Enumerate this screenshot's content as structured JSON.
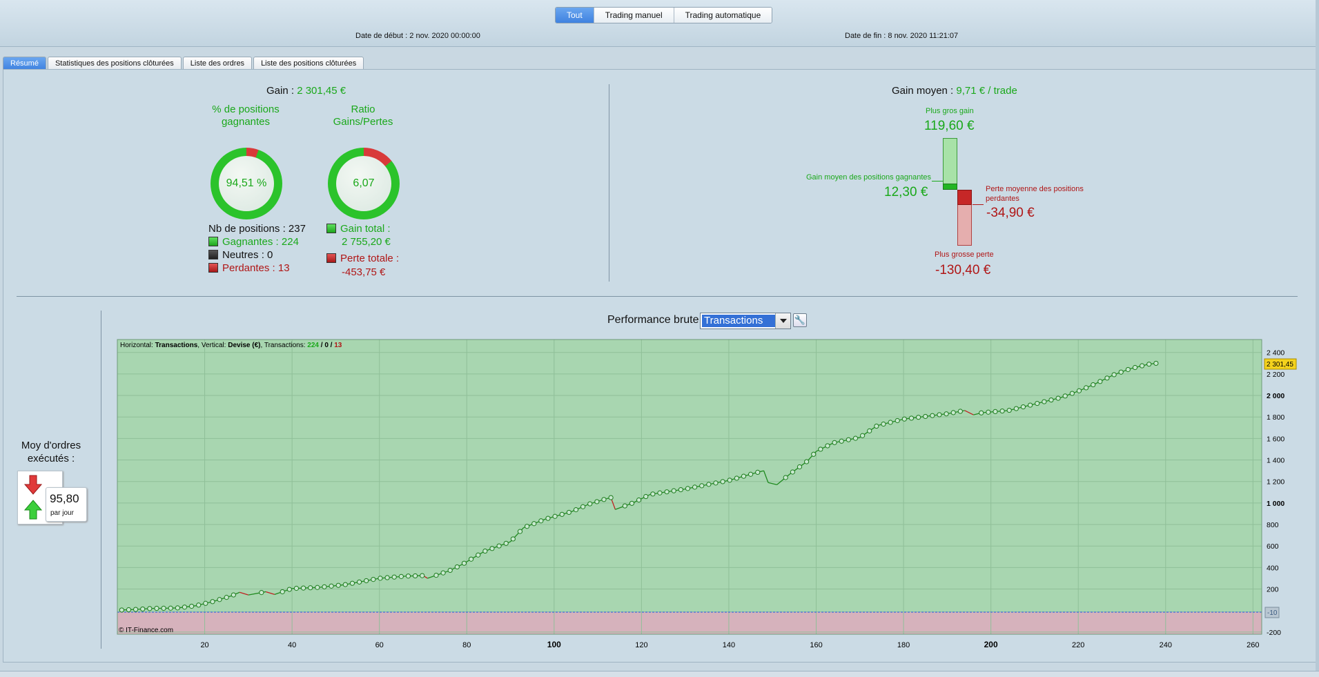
{
  "header": {
    "filters": [
      "Tout",
      "Trading manuel",
      "Trading automatique"
    ],
    "active_filter": "Tout",
    "start_date_label": "Date de début :",
    "start_date": "2 nov. 2020 00:00:00",
    "end_date_label": "Date de fin :",
    "end_date": "8 nov. 2020 11:21:07"
  },
  "tabs": [
    "Résumé",
    "Statistiques des positions clôturées",
    "Liste des ordres",
    "Liste des positions clôturées"
  ],
  "summary": {
    "gain_label": "Gain :",
    "gain_value": "2 301,45 €",
    "pct_title": "% de positions gagnantes",
    "pct_value": "94,51 %",
    "pct_fraction": 0.9451,
    "ratio_title": "Ratio Gains/Pertes",
    "ratio_value": "6,07",
    "ratio_fraction": 0.8585,
    "nb_positions": "Nb de positions : 237",
    "winning": "Gagnantes : 224",
    "neutral": "Neutres : 0",
    "losing": "Perdantes : 13",
    "total_gain_label": "Gain total :",
    "total_gain_value": "2 755,20 €",
    "total_loss_label": "Perte totale :",
    "total_loss_value": "-453,75 €"
  },
  "average": {
    "title_label": "Gain moyen :",
    "title_value": "9,71 € / trade",
    "biggest_gain_label": "Plus gros gain",
    "biggest_gain_value": "119,60 €",
    "avg_win_label": "Gain moyen des positions gagnantes",
    "avg_win_value": "12,30 €",
    "avg_loss_label": "Perte moyenne des positions perdantes",
    "avg_loss_value": "-34,90 €",
    "biggest_loss_label": "Plus grosse perte",
    "biggest_loss_value": "-130,40 €"
  },
  "orders": {
    "title": "Moy d'ordres exécutés :",
    "value": "95,80",
    "unit": "par jour"
  },
  "performance": {
    "title": "Performance brute",
    "dropdown_value": "Transactions"
  },
  "chart_data": {
    "type": "line",
    "info_prefix": "Horizontal:",
    "info_h": "Transactions",
    "info_mid": ", Vertical:",
    "info_v": "Devise (€)",
    "info_tr": ", Transactions:",
    "info_win": "224",
    "info_sep1": "/",
    "info_neutral": "0",
    "info_sep2": "/",
    "info_loss": "13",
    "copyright": "© IT-Finance.com",
    "xlim": [
      0,
      262
    ],
    "ylim": [
      -220,
      2520
    ],
    "x_ticks": [
      "20",
      "40",
      "60",
      "80",
      "100",
      "120",
      "140",
      "160",
      "180",
      "200",
      "220",
      "240",
      "260"
    ],
    "x_tick_values": [
      20,
      40,
      60,
      80,
      100,
      120,
      140,
      160,
      180,
      200,
      220,
      240,
      260
    ],
    "bold_x_ticks": [
      100,
      200
    ],
    "y_ticks": [
      "-200",
      "200",
      "400",
      "600",
      "800",
      "1 000",
      "1 200",
      "1 400",
      "1 600",
      "1 800",
      "2 000",
      "2 200",
      "2 400"
    ],
    "y_tick_values": [
      -200,
      200,
      400,
      600,
      800,
      1000,
      1200,
      1400,
      1600,
      1800,
      2000,
      2200,
      2400
    ],
    "bold_y_ticks": [
      1000,
      2000
    ],
    "zero_marker": "-10",
    "last_value_label": "2 301,45",
    "series_points": [
      [
        1,
        5
      ],
      [
        4,
        10
      ],
      [
        8,
        20
      ],
      [
        12,
        22
      ],
      [
        14,
        25
      ],
      [
        18,
        45
      ],
      [
        22,
        85
      ],
      [
        26,
        135
      ],
      [
        28,
        170
      ],
      [
        30,
        145
      ],
      [
        34,
        175
      ],
      [
        36,
        150
      ],
      [
        40,
        205
      ],
      [
        46,
        215
      ],
      [
        52,
        240
      ],
      [
        60,
        300
      ],
      [
        66,
        320
      ],
      [
        70,
        325
      ],
      [
        71,
        300
      ],
      [
        76,
        370
      ],
      [
        79,
        430
      ],
      [
        84,
        550
      ],
      [
        90,
        640
      ],
      [
        93,
        770
      ],
      [
        98,
        850
      ],
      [
        104,
        920
      ],
      [
        108,
        990
      ],
      [
        112,
        1040
      ],
      [
        113,
        1050
      ],
      [
        114,
        940
      ],
      [
        118,
        1000
      ],
      [
        122,
        1080
      ],
      [
        130,
        1130
      ],
      [
        140,
        1210
      ],
      [
        147,
        1290
      ],
      [
        148,
        1300
      ],
      [
        149,
        1190
      ],
      [
        151,
        1170
      ],
      [
        154,
        1270
      ],
      [
        158,
        1390
      ],
      [
        160,
        1480
      ],
      [
        164,
        1560
      ],
      [
        170,
        1610
      ],
      [
        174,
        1720
      ],
      [
        180,
        1780
      ],
      [
        186,
        1810
      ],
      [
        190,
        1830
      ],
      [
        194,
        1860
      ],
      [
        196,
        1820
      ],
      [
        198,
        1840
      ],
      [
        204,
        1860
      ],
      [
        210,
        1920
      ],
      [
        216,
        1980
      ],
      [
        220,
        2040
      ],
      [
        224,
        2110
      ],
      [
        228,
        2190
      ],
      [
        232,
        2250
      ],
      [
        236,
        2290
      ],
      [
        238,
        2300
      ]
    ],
    "loss_segments": [
      [
        28,
        30
      ],
      [
        34,
        36
      ],
      [
        70,
        71
      ],
      [
        113,
        114
      ],
      [
        148,
        151
      ],
      [
        194,
        196
      ]
    ]
  }
}
